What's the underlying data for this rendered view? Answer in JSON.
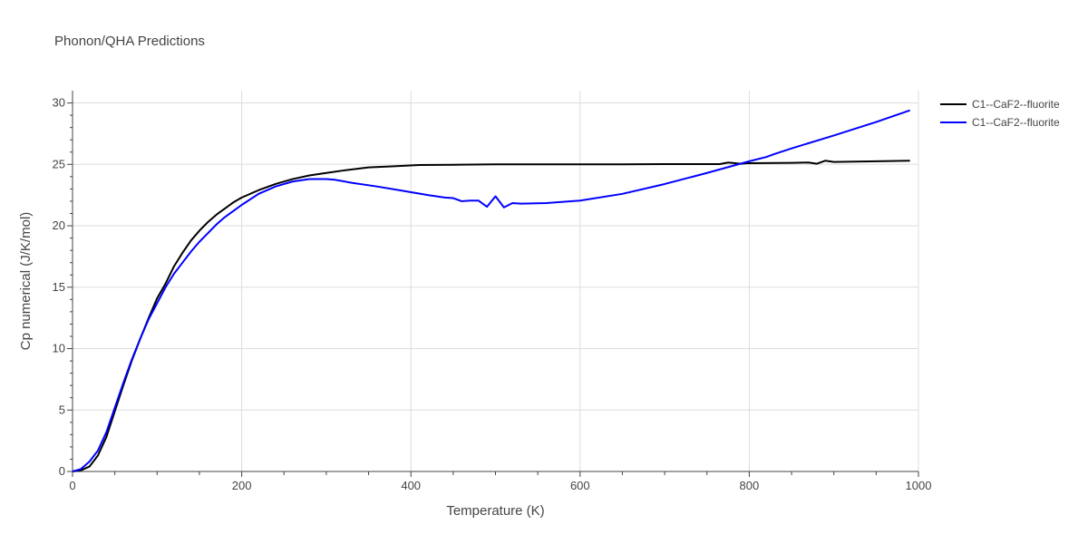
{
  "chart_data": {
    "type": "line",
    "title": "Phonon/QHA Predictions",
    "xlabel": "Temperature (K)",
    "ylabel": "Cp numerical (J/K/mol)",
    "xlim": [
      0,
      1000
    ],
    "ylim": [
      0,
      31
    ],
    "xticks": [
      0,
      200,
      400,
      600,
      800,
      1000
    ],
    "yticks": [
      0,
      5,
      10,
      15,
      20,
      25,
      30
    ],
    "grid": true,
    "legend_position": "top-right",
    "series": [
      {
        "name": "C1--CaF2--fluorite",
        "color": "#000000",
        "x": [
          0,
          10,
          20,
          30,
          40,
          50,
          60,
          70,
          80,
          90,
          100,
          110,
          120,
          130,
          140,
          150,
          160,
          170,
          180,
          190,
          200,
          220,
          240,
          260,
          280,
          300,
          320,
          350,
          380,
          410,
          450,
          500,
          550,
          600,
          650,
          700,
          750,
          765,
          775,
          790,
          800,
          850,
          870,
          880,
          890,
          900,
          950,
          990
        ],
        "y": [
          0,
          0.1,
          0.4,
          1.3,
          2.8,
          4.9,
          7.0,
          9.0,
          10.8,
          12.5,
          14.1,
          15.3,
          16.7,
          17.8,
          18.8,
          19.6,
          20.3,
          20.9,
          21.4,
          21.9,
          22.3,
          22.9,
          23.4,
          23.8,
          24.1,
          24.3,
          24.5,
          24.75,
          24.85,
          24.95,
          24.97,
          25.0,
          25.0,
          25.0,
          25.0,
          25.02,
          25.02,
          25.02,
          25.15,
          25.05,
          25.1,
          25.12,
          25.15,
          25.05,
          25.3,
          25.2,
          25.25,
          25.3
        ]
      },
      {
        "name": "C1--CaF2--fluorite",
        "color": "#0000ff",
        "x": [
          0,
          10,
          20,
          30,
          40,
          50,
          60,
          70,
          80,
          90,
          100,
          110,
          120,
          130,
          140,
          150,
          160,
          170,
          180,
          190,
          200,
          220,
          240,
          260,
          280,
          300,
          310,
          330,
          360,
          390,
          420,
          440,
          450,
          460,
          470,
          480,
          490,
          500,
          510,
          520,
          530,
          560,
          600,
          650,
          700,
          750,
          800,
          820,
          830,
          850,
          900,
          950,
          990
        ],
        "y": [
          0,
          0.2,
          0.8,
          1.7,
          3.2,
          5.2,
          7.2,
          9.1,
          10.8,
          12.4,
          13.7,
          15.0,
          16.1,
          17.0,
          17.9,
          18.7,
          19.4,
          20.1,
          20.7,
          21.2,
          21.7,
          22.6,
          23.2,
          23.6,
          23.8,
          23.8,
          23.75,
          23.5,
          23.2,
          22.85,
          22.5,
          22.3,
          22.25,
          22.0,
          22.05,
          22.05,
          21.55,
          22.4,
          21.5,
          21.85,
          21.8,
          21.85,
          22.05,
          22.6,
          23.4,
          24.3,
          25.25,
          25.6,
          25.85,
          26.3,
          27.35,
          28.45,
          29.4
        ]
      }
    ]
  }
}
